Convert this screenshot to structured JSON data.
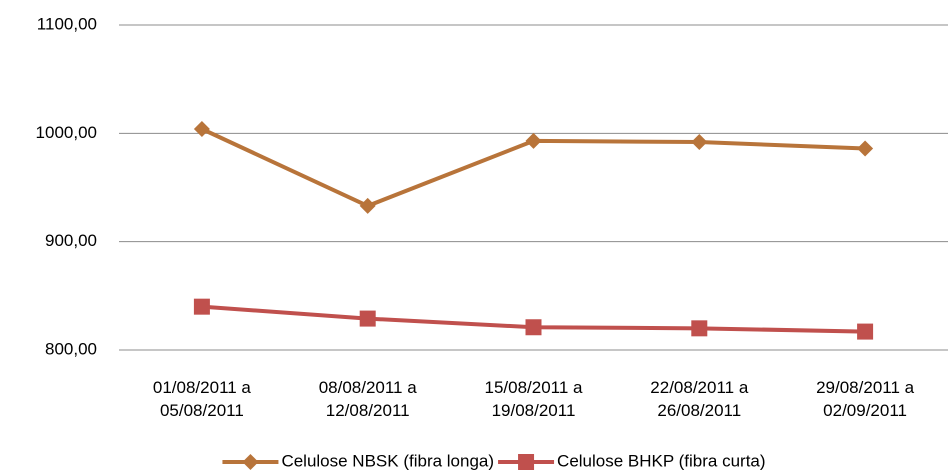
{
  "chart_data": {
    "type": "line",
    "categories": [
      "01/08/2011 a\n05/08/2011",
      "08/08/2011 a\n12/08/2011",
      "15/08/2011 a\n19/08/2011",
      "22/08/2011 a\n26/08/2011",
      "29/08/2011 a\n02/09/2011"
    ],
    "series": [
      {
        "name": "Celulose NBSK (fibra longa)",
        "color": "#b8743a",
        "marker": "diamond",
        "values": [
          1004,
          933,
          993,
          992,
          986
        ]
      },
      {
        "name": "Celulose BHKP (fibra curta)",
        "color": "#c0504d",
        "marker": "square",
        "values": [
          840,
          829,
          821,
          820,
          817
        ]
      }
    ],
    "ylim": [
      800,
      1100
    ],
    "yticks": [
      {
        "value": 800,
        "label": "800,00"
      },
      {
        "value": 900,
        "label": "900,00"
      },
      {
        "value": 1000,
        "label": "1000,00"
      },
      {
        "value": 1100,
        "label": "1100,00"
      }
    ],
    "grid": true,
    "legend": "bottom"
  }
}
